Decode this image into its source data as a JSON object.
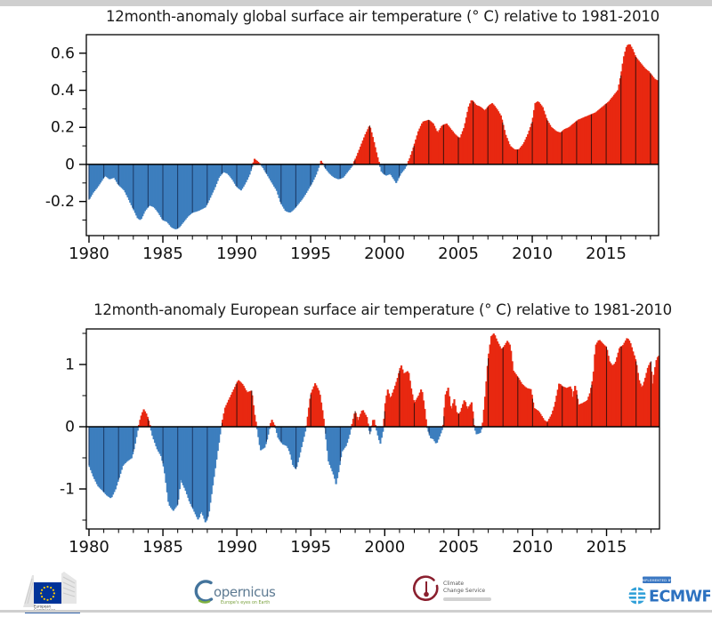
{
  "figure": {
    "top_strip_color": "#cfcfcf",
    "bottom_strip_color": "#cfcfcf",
    "background": "#ffffff"
  },
  "charts": [
    {
      "title": "12month-anomaly global surface air temperature (° C) relative to 1981-2010"
    },
    {
      "title": "12month-anomaly European surface air temperature (° C) relative to 1981-2010"
    }
  ],
  "chart_data": [
    {
      "type": "area",
      "name": "global",
      "title": "12month-anomaly global surface air temperature (° C) relative to 1981-2010",
      "xlabel": "",
      "ylabel": "",
      "grid": false,
      "legend": false,
      "xlim": [
        1979.82,
        2018.55
      ],
      "ylim": [
        -0.384,
        0.7
      ],
      "x_major_ticks": [
        1980,
        1985,
        1990,
        1995,
        2000,
        2005,
        2010,
        2015
      ],
      "x_minor_step": 1,
      "y_major_ticks": [
        {
          "v": 0.6,
          "label": "0.6"
        },
        {
          "v": 0.4,
          "label": "0.4"
        },
        {
          "v": 0.2,
          "label": "0.2"
        },
        {
          "v": 0.0,
          "label": "0"
        },
        {
          "v": -0.2,
          "label": "-0.2"
        }
      ],
      "y_minor_ticks": [
        0.5,
        0.3,
        0.1,
        -0.1,
        -0.3
      ],
      "colors": {
        "positive": "#e82811",
        "negative": "#3e7fbf",
        "year_line_positive": "#4a120c",
        "year_line_negative": "#1d3e6b",
        "axis": "#000000"
      },
      "series": [
        [
          1980.0,
          -0.19
        ],
        [
          1980.3,
          -0.15
        ],
        [
          1980.6,
          -0.12
        ],
        [
          1981.1,
          -0.06
        ],
        [
          1981.4,
          -0.08
        ],
        [
          1981.7,
          -0.07
        ],
        [
          1982.0,
          -0.11
        ],
        [
          1982.4,
          -0.14
        ],
        [
          1982.7,
          -0.19
        ],
        [
          1983.0,
          -0.24
        ],
        [
          1983.3,
          -0.29
        ],
        [
          1983.5,
          -0.3
        ],
        [
          1983.8,
          -0.25
        ],
        [
          1984.1,
          -0.22
        ],
        [
          1984.4,
          -0.23
        ],
        [
          1984.7,
          -0.26
        ],
        [
          1985.0,
          -0.3
        ],
        [
          1985.3,
          -0.31
        ],
        [
          1985.6,
          -0.34
        ],
        [
          1985.9,
          -0.35
        ],
        [
          1986.1,
          -0.34
        ],
        [
          1986.4,
          -0.31
        ],
        [
          1986.7,
          -0.28
        ],
        [
          1987.0,
          -0.26
        ],
        [
          1987.4,
          -0.25
        ],
        [
          1987.9,
          -0.23
        ],
        [
          1988.2,
          -0.18
        ],
        [
          1988.5,
          -0.13
        ],
        [
          1988.8,
          -0.07
        ],
        [
          1989.1,
          -0.04
        ],
        [
          1989.4,
          -0.05
        ],
        [
          1989.7,
          -0.08
        ],
        [
          1990.0,
          -0.12
        ],
        [
          1990.3,
          -0.14
        ],
        [
          1990.6,
          -0.1
        ],
        [
          1990.9,
          -0.05
        ],
        [
          1991.2,
          0.03
        ],
        [
          1991.5,
          0.01
        ],
        [
          1991.8,
          -0.02
        ],
        [
          1992.1,
          -0.06
        ],
        [
          1992.4,
          -0.1
        ],
        [
          1992.7,
          -0.14
        ],
        [
          1993.0,
          -0.21
        ],
        [
          1993.3,
          -0.25
        ],
        [
          1993.6,
          -0.26
        ],
        [
          1993.9,
          -0.24
        ],
        [
          1994.2,
          -0.21
        ],
        [
          1994.5,
          -0.18
        ],
        [
          1994.8,
          -0.14
        ],
        [
          1995.1,
          -0.1
        ],
        [
          1995.4,
          -0.05
        ],
        [
          1995.7,
          0.02
        ],
        [
          1996.0,
          -0.02
        ],
        [
          1996.3,
          -0.05
        ],
        [
          1996.6,
          -0.07
        ],
        [
          1996.9,
          -0.08
        ],
        [
          1997.2,
          -0.07
        ],
        [
          1997.5,
          -0.04
        ],
        [
          1997.8,
          -0.01
        ],
        [
          1998.1,
          0.04
        ],
        [
          1998.4,
          0.1
        ],
        [
          1998.7,
          0.16
        ],
        [
          1999.0,
          0.21
        ],
        [
          1999.2,
          0.15
        ],
        [
          1999.5,
          0.05
        ],
        [
          1999.8,
          -0.04
        ],
        [
          2000.1,
          -0.06
        ],
        [
          2000.4,
          -0.05
        ],
        [
          2000.8,
          -0.1
        ],
        [
          2001.1,
          -0.05
        ],
        [
          2001.4,
          -0.02
        ],
        [
          2001.7,
          0.03
        ],
        [
          2002.0,
          0.1
        ],
        [
          2002.3,
          0.18
        ],
        [
          2002.6,
          0.23
        ],
        [
          2003.0,
          0.24
        ],
        [
          2003.3,
          0.22
        ],
        [
          2003.6,
          0.17
        ],
        [
          2003.9,
          0.21
        ],
        [
          2004.2,
          0.22
        ],
        [
          2004.5,
          0.19
        ],
        [
          2004.8,
          0.16
        ],
        [
          2005.1,
          0.14
        ],
        [
          2005.4,
          0.2
        ],
        [
          2005.7,
          0.31
        ],
        [
          2005.9,
          0.35
        ],
        [
          2006.2,
          0.32
        ],
        [
          2006.5,
          0.31
        ],
        [
          2006.8,
          0.29
        ],
        [
          2007.1,
          0.32
        ],
        [
          2007.3,
          0.33
        ],
        [
          2007.6,
          0.3
        ],
        [
          2007.9,
          0.26
        ],
        [
          2008.2,
          0.16
        ],
        [
          2008.5,
          0.1
        ],
        [
          2008.8,
          0.08
        ],
        [
          2009.1,
          0.08
        ],
        [
          2009.4,
          0.11
        ],
        [
          2009.7,
          0.16
        ],
        [
          2010.0,
          0.23
        ],
        [
          2010.2,
          0.33
        ],
        [
          2010.4,
          0.34
        ],
        [
          2010.7,
          0.31
        ],
        [
          2011.0,
          0.24
        ],
        [
          2011.3,
          0.2
        ],
        [
          2011.6,
          0.18
        ],
        [
          2011.9,
          0.17
        ],
        [
          2012.2,
          0.19
        ],
        [
          2012.5,
          0.2
        ],
        [
          2012.8,
          0.22
        ],
        [
          2013.1,
          0.24
        ],
        [
          2013.4,
          0.25
        ],
        [
          2013.7,
          0.26
        ],
        [
          2014.0,
          0.27
        ],
        [
          2014.3,
          0.28
        ],
        [
          2014.6,
          0.3
        ],
        [
          2014.9,
          0.32
        ],
        [
          2015.2,
          0.34
        ],
        [
          2015.5,
          0.37
        ],
        [
          2015.8,
          0.4
        ],
        [
          2016.0,
          0.48
        ],
        [
          2016.2,
          0.58
        ],
        [
          2016.4,
          0.64
        ],
        [
          2016.6,
          0.65
        ],
        [
          2016.8,
          0.62
        ],
        [
          2017.0,
          0.58
        ],
        [
          2017.3,
          0.55
        ],
        [
          2017.6,
          0.52
        ],
        [
          2017.9,
          0.5
        ],
        [
          2018.1,
          0.48
        ],
        [
          2018.3,
          0.46
        ],
        [
          2018.55,
          0.45
        ]
      ]
    },
    {
      "type": "area",
      "name": "european",
      "title": "12month-anomaly European surface air temperature (° C) relative to 1981-2010",
      "xlabel": "",
      "ylabel": "",
      "grid": false,
      "legend": false,
      "xlim": [
        1979.82,
        2018.58
      ],
      "ylim": [
        -1.643,
        1.571
      ],
      "x_major_ticks": [
        1980,
        1985,
        1990,
        1995,
        2000,
        2005,
        2010,
        2015
      ],
      "x_minor_step": 1,
      "y_major_ticks": [
        {
          "v": 1,
          "label": "1"
        },
        {
          "v": 0,
          "label": "0"
        },
        {
          "v": -1,
          "label": "-1"
        }
      ],
      "y_minor_ticks": [
        1.5,
        0.5,
        -0.5,
        -1.5
      ],
      "colors": {
        "positive": "#e82811",
        "negative": "#3e7fbf",
        "year_line_positive": "#4a120c",
        "year_line_negative": "#1d3e6b",
        "axis": "#000000"
      },
      "series": [
        [
          1980.0,
          -0.62
        ],
        [
          1980.3,
          -0.8
        ],
        [
          1980.6,
          -0.95
        ],
        [
          1980.9,
          -1.02
        ],
        [
          1981.2,
          -1.1
        ],
        [
          1981.5,
          -1.15
        ],
        [
          1981.8,
          -1.0
        ],
        [
          1982.0,
          -0.85
        ],
        [
          1982.3,
          -0.62
        ],
        [
          1982.6,
          -0.55
        ],
        [
          1982.9,
          -0.5
        ],
        [
          1983.1,
          -0.3
        ],
        [
          1983.3,
          -0.05
        ],
        [
          1983.5,
          0.15
        ],
        [
          1983.7,
          0.28
        ],
        [
          1983.9,
          0.2
        ],
        [
          1984.1,
          0.05
        ],
        [
          1984.3,
          -0.15
        ],
        [
          1984.6,
          -0.35
        ],
        [
          1984.9,
          -0.48
        ],
        [
          1985.1,
          -0.7
        ],
        [
          1985.4,
          -1.25
        ],
        [
          1985.7,
          -1.35
        ],
        [
          1986.0,
          -1.25
        ],
        [
          1986.2,
          -0.85
        ],
        [
          1986.5,
          -1.0
        ],
        [
          1986.8,
          -1.2
        ],
        [
          1987.1,
          -1.35
        ],
        [
          1987.4,
          -1.5
        ],
        [
          1987.6,
          -1.35
        ],
        [
          1987.9,
          -1.55
        ],
        [
          1988.1,
          -1.4
        ],
        [
          1988.4,
          -0.9
        ],
        [
          1988.7,
          -0.4
        ],
        [
          1988.95,
          0.0
        ],
        [
          1989.2,
          0.3
        ],
        [
          1989.5,
          0.45
        ],
        [
          1989.8,
          0.6
        ],
        [
          1990.1,
          0.75
        ],
        [
          1990.4,
          0.68
        ],
        [
          1990.7,
          0.55
        ],
        [
          1991.0,
          0.58
        ],
        [
          1991.2,
          0.2
        ],
        [
          1991.35,
          0.0
        ],
        [
          1991.6,
          -0.38
        ],
        [
          1991.9,
          -0.33
        ],
        [
          1992.1,
          -0.15
        ],
        [
          1992.35,
          0.12
        ],
        [
          1992.6,
          0.0
        ],
        [
          1992.8,
          -0.18
        ],
        [
          1993.1,
          -0.28
        ],
        [
          1993.4,
          -0.31
        ],
        [
          1993.6,
          -0.42
        ],
        [
          1993.8,
          -0.62
        ],
        [
          1994.0,
          -0.68
        ],
        [
          1994.2,
          -0.5
        ],
        [
          1994.4,
          -0.3
        ],
        [
          1994.7,
          0.0
        ],
        [
          1995.0,
          0.52
        ],
        [
          1995.3,
          0.7
        ],
        [
          1995.6,
          0.55
        ],
        [
          1995.8,
          0.25
        ],
        [
          1995.95,
          0.0
        ],
        [
          1996.2,
          -0.55
        ],
        [
          1996.4,
          -0.68
        ],
        [
          1996.6,
          -0.8
        ],
        [
          1996.7,
          -0.93
        ],
        [
          1996.9,
          -0.7
        ],
        [
          1997.1,
          -0.4
        ],
        [
          1997.4,
          -0.3
        ],
        [
          1997.6,
          -0.15
        ],
        [
          1997.75,
          0.0
        ],
        [
          1998.0,
          0.25
        ],
        [
          1998.2,
          0.1
        ],
        [
          1998.5,
          0.28
        ],
        [
          1998.8,
          0.15
        ],
        [
          1999.0,
          -0.12
        ],
        [
          1999.25,
          0.15
        ],
        [
          1999.5,
          -0.1
        ],
        [
          1999.7,
          -0.28
        ],
        [
          1999.9,
          -0.05
        ],
        [
          2000.05,
          0.4
        ],
        [
          2000.2,
          0.6
        ],
        [
          2000.4,
          0.45
        ],
        [
          2000.7,
          0.65
        ],
        [
          2000.9,
          0.8
        ],
        [
          2001.1,
          1.0
        ],
        [
          2001.3,
          0.85
        ],
        [
          2001.6,
          0.9
        ],
        [
          2001.8,
          0.6
        ],
        [
          2002.0,
          0.38
        ],
        [
          2002.3,
          0.5
        ],
        [
          2002.5,
          0.62
        ],
        [
          2002.7,
          0.3
        ],
        [
          2002.85,
          0.0
        ],
        [
          2003.1,
          -0.18
        ],
        [
          2003.3,
          -0.2
        ],
        [
          2003.5,
          -0.28
        ],
        [
          2003.8,
          -0.1
        ],
        [
          2003.95,
          0.0
        ],
        [
          2004.1,
          0.5
        ],
        [
          2004.3,
          0.63
        ],
        [
          2004.5,
          0.25
        ],
        [
          2004.7,
          0.45
        ],
        [
          2004.9,
          0.2
        ],
        [
          2005.1,
          0.22
        ],
        [
          2005.4,
          0.44
        ],
        [
          2005.6,
          0.28
        ],
        [
          2005.9,
          0.4
        ],
        [
          2006.05,
          0.0
        ],
        [
          2006.2,
          -0.12
        ],
        [
          2006.45,
          -0.1
        ],
        [
          2006.6,
          0.0
        ],
        [
          2006.8,
          0.5
        ],
        [
          2007.0,
          1.1
        ],
        [
          2007.2,
          1.45
        ],
        [
          2007.4,
          1.5
        ],
        [
          2007.6,
          1.38
        ],
        [
          2007.9,
          1.24
        ],
        [
          2008.1,
          1.3
        ],
        [
          2008.3,
          1.38
        ],
        [
          2008.5,
          1.3
        ],
        [
          2008.7,
          0.9
        ],
        [
          2009.0,
          0.8
        ],
        [
          2009.3,
          0.68
        ],
        [
          2009.6,
          0.62
        ],
        [
          2009.9,
          0.6
        ],
        [
          2010.1,
          0.3
        ],
        [
          2010.4,
          0.25
        ],
        [
          2010.6,
          0.18
        ],
        [
          2010.8,
          0.1
        ],
        [
          2011.0,
          0.07
        ],
        [
          2011.3,
          0.2
        ],
        [
          2011.5,
          0.35
        ],
        [
          2011.8,
          0.7
        ],
        [
          2012.0,
          0.65
        ],
        [
          2012.3,
          0.62
        ],
        [
          2012.6,
          0.65
        ],
        [
          2012.7,
          0.47
        ],
        [
          2012.9,
          0.68
        ],
        [
          2013.1,
          0.35
        ],
        [
          2013.4,
          0.38
        ],
        [
          2013.7,
          0.42
        ],
        [
          2013.9,
          0.55
        ],
        [
          2014.1,
          0.8
        ],
        [
          2014.25,
          1.3
        ],
        [
          2014.5,
          1.4
        ],
        [
          2014.8,
          1.32
        ],
        [
          2015.0,
          1.28
        ],
        [
          2015.2,
          1.05
        ],
        [
          2015.4,
          0.98
        ],
        [
          2015.6,
          1.02
        ],
        [
          2015.9,
          1.28
        ],
        [
          2016.1,
          1.3
        ],
        [
          2016.4,
          1.43
        ],
        [
          2016.6,
          1.36
        ],
        [
          2016.8,
          1.2
        ],
        [
          2017.0,
          1.05
        ],
        [
          2017.2,
          0.75
        ],
        [
          2017.4,
          0.62
        ],
        [
          2017.6,
          0.76
        ],
        [
          2017.8,
          0.95
        ],
        [
          2018.0,
          1.05
        ],
        [
          2018.1,
          0.65
        ],
        [
          2018.25,
          0.9
        ],
        [
          2018.4,
          1.1
        ],
        [
          2018.58,
          1.15
        ]
      ]
    }
  ],
  "footer": {
    "eu": {
      "line1": "European",
      "line2": "Commission",
      "flag_color": "#003399",
      "star_color": "#ffcc00",
      "bar_color": "#2b5ea7"
    },
    "copernicus": {
      "wordmark": "opernicus",
      "tagline": "Europe's eyes on Earth",
      "wordmark_color": "#5d7a92",
      "tagline_color": "#79a03c",
      "swoosh_color": "#44749c",
      "swoosh_accent": "#7fb13e"
    },
    "c3s": {
      "line1": "Climate",
      "line2": "Change Service",
      "icon_color": "#8a1f2e",
      "text_color": "#555555"
    },
    "ecmwf": {
      "chip_label": "IMPLEMENTED BY",
      "wordmark": "ECMWF",
      "chip_color": "#3a77c2",
      "icon_color": "#2f9fd8",
      "text_color": "#2d72c0"
    }
  }
}
